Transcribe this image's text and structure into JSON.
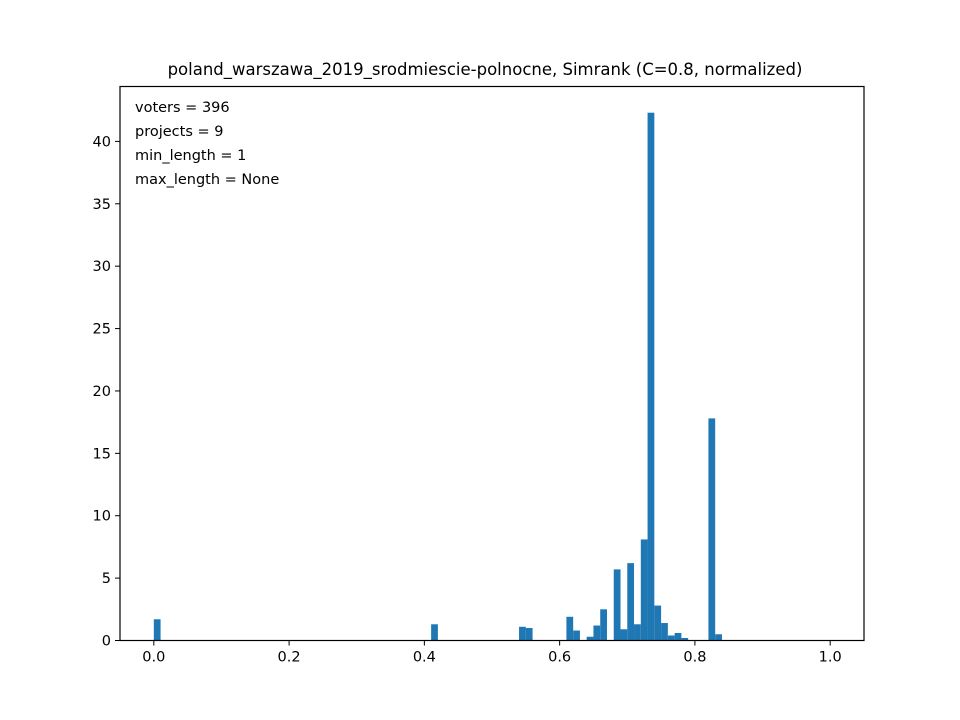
{
  "chart_data": {
    "type": "bar",
    "title": "poland_warszawa_2019_srodmiescie-polnocne, Simrank (C=0.8, normalized)",
    "xlabel": "",
    "ylabel": "",
    "xlim": [
      -0.05,
      1.05
    ],
    "ylim": [
      0,
      44.4
    ],
    "xticks": [
      "0.0",
      "0.2",
      "0.4",
      "0.6",
      "0.8",
      "1.0"
    ],
    "yticks": [
      "0",
      "5",
      "10",
      "15",
      "20",
      "25",
      "30",
      "35",
      "40"
    ],
    "grid": false,
    "bin_width": 0.01,
    "bar_color": "#1f77b4",
    "bins": [
      {
        "x": 0.0,
        "y": 1.7
      },
      {
        "x": 0.41,
        "y": 1.3
      },
      {
        "x": 0.54,
        "y": 1.1
      },
      {
        "x": 0.55,
        "y": 1.0
      },
      {
        "x": 0.61,
        "y": 1.9
      },
      {
        "x": 0.62,
        "y": 0.8
      },
      {
        "x": 0.64,
        "y": 0.3
      },
      {
        "x": 0.65,
        "y": 1.2
      },
      {
        "x": 0.66,
        "y": 2.5
      },
      {
        "x": 0.68,
        "y": 5.7
      },
      {
        "x": 0.69,
        "y": 0.9
      },
      {
        "x": 0.7,
        "y": 6.2
      },
      {
        "x": 0.71,
        "y": 1.3
      },
      {
        "x": 0.72,
        "y": 8.1
      },
      {
        "x": 0.73,
        "y": 42.3
      },
      {
        "x": 0.74,
        "y": 2.8
      },
      {
        "x": 0.75,
        "y": 1.4
      },
      {
        "x": 0.76,
        "y": 0.4
      },
      {
        "x": 0.77,
        "y": 0.6
      },
      {
        "x": 0.78,
        "y": 0.2
      },
      {
        "x": 0.82,
        "y": 17.8
      },
      {
        "x": 0.83,
        "y": 0.5
      }
    ],
    "annotations": [
      "voters = 396",
      "projects = 9",
      "min_length = 1",
      "max_length = None"
    ]
  }
}
